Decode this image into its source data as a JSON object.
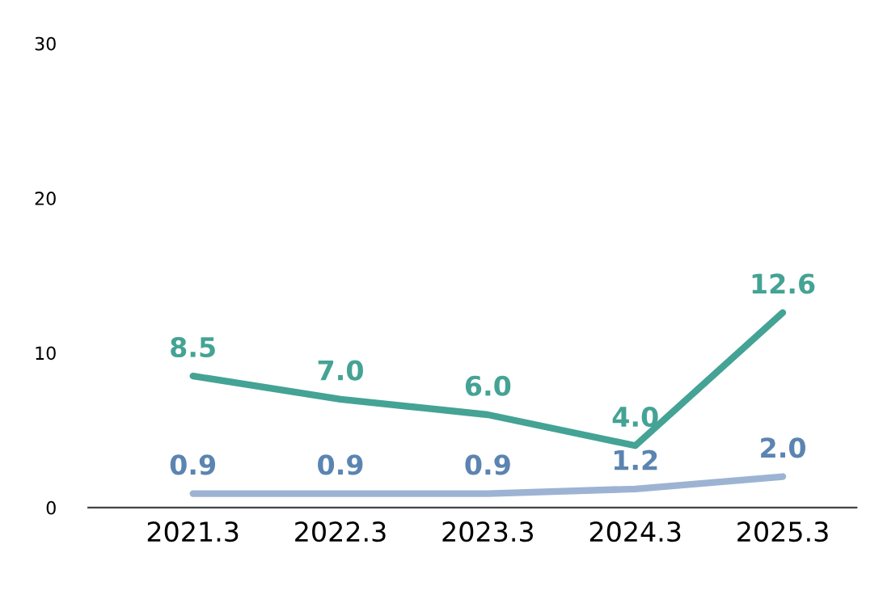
{
  "chart_data": {
    "type": "line",
    "categories": [
      "2021.3",
      "2022.3",
      "2023.3",
      "2024.3",
      "2025.3"
    ],
    "series": [
      {
        "color": "#44a394",
        "values": [
          8.5,
          7.0,
          6.0,
          4.0,
          12.6
        ],
        "value_labels": [
          "8.5",
          "7.0",
          "6.0",
          "4.0",
          "12.6"
        ]
      },
      {
        "color": "#9db3d3",
        "values": [
          0.9,
          0.9,
          0.9,
          1.2,
          2.0
        ],
        "value_labels": [
          "0.9",
          "0.9",
          "0.9",
          "1.2",
          "2.0"
        ]
      }
    ],
    "ylim": [
      0,
      30
    ],
    "yticks": [
      0,
      10,
      20,
      30
    ],
    "grid": false,
    "marker": "none",
    "line_style": "solid"
  }
}
